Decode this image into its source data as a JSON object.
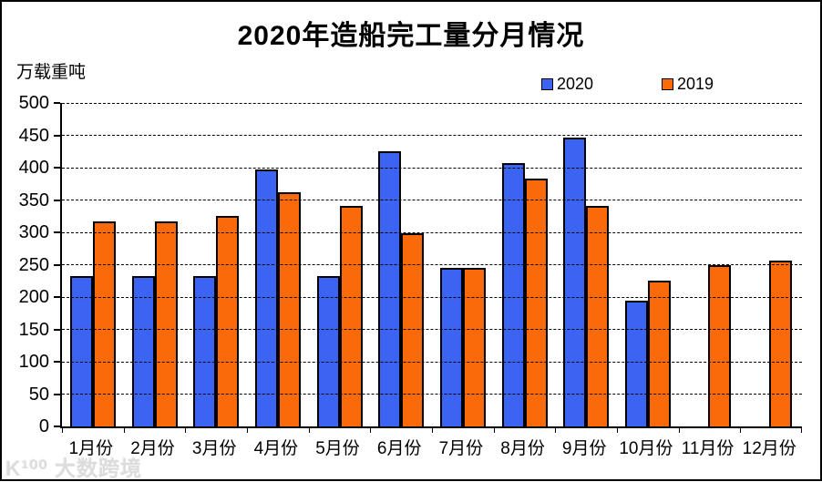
{
  "page": {
    "watermark": "K¹⁰⁰ 大数跨境"
  },
  "chart_data": {
    "type": "bar",
    "title": "2020年造船完工量分月情况",
    "unit_label": "万载重吨",
    "xlabel": "",
    "ylabel": "万载重吨",
    "ylim": [
      0,
      500
    ],
    "ytick_step": 50,
    "grid": "horizontal-dashed",
    "legend_position": "top-right",
    "categories": [
      "1月份",
      "2月份",
      "3月份",
      "4月份",
      "5月份",
      "6月份",
      "7月份",
      "8月份",
      "9月份",
      "10月份",
      "11月份",
      "12月份"
    ],
    "series": [
      {
        "name": "2020",
        "color": "#3A64F1",
        "values": [
          233,
          233,
          233,
          397,
          233,
          425,
          245,
          407,
          446,
          194,
          null,
          null
        ]
      },
      {
        "name": "2019",
        "color": "#FA6A0A",
        "values": [
          317,
          317,
          326,
          362,
          341,
          299,
          245,
          383,
          341,
          226,
          250,
          257
        ]
      }
    ]
  }
}
